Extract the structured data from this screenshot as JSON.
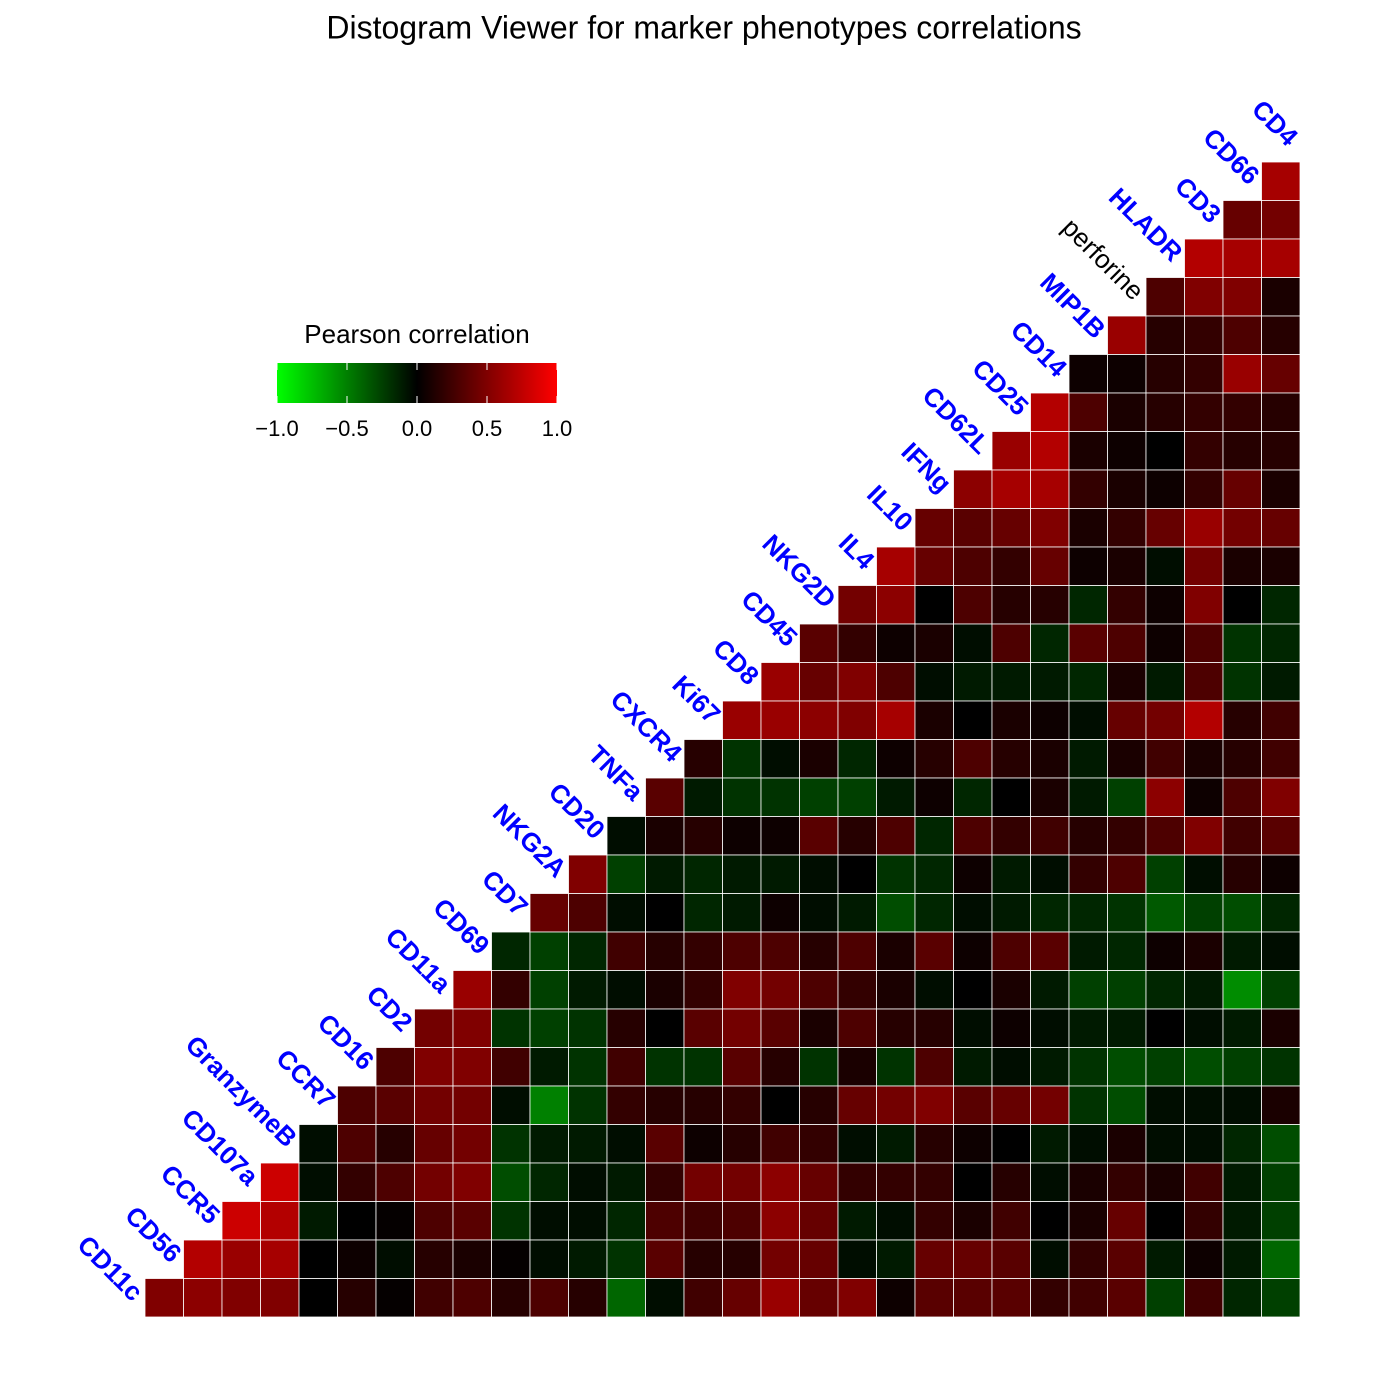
{
  "chart_data": {
    "type": "triangular-heatmap",
    "title": "Distogram Viewer for marker phenotypes correlations",
    "legend": {
      "title": "Pearson correlation",
      "corner": "top-left",
      "colors": [
        "#00ff00",
        "#000000",
        "#ff0000"
      ],
      "lim": [
        -1,
        1
      ],
      "ticks": [
        {
          "value": -1,
          "label": "−1.0"
        },
        {
          "value": -0.5,
          "label": "−0.5"
        },
        {
          "value": 0,
          "label": "0.0"
        },
        0.5,
        {
          "value": 1,
          "label": "1.0"
        }
      ]
    },
    "markers": [
      {
        "name": "CD11c",
        "color": "#0000ff"
      },
      {
        "name": "CD56",
        "color": "#0000ff"
      },
      {
        "name": "CCR5",
        "color": "#0000ff"
      },
      {
        "name": "CD107a",
        "color": "#0000ff"
      },
      {
        "name": "GranzymeB",
        "color": "#0000ff"
      },
      {
        "name": "CCR7",
        "color": "#0000ff"
      },
      {
        "name": "CD16",
        "color": "#0000ff"
      },
      {
        "name": "CD2",
        "color": "#0000ff"
      },
      {
        "name": "CD11a",
        "color": "#0000ff"
      },
      {
        "name": "CD69",
        "color": "#0000ff"
      },
      {
        "name": "CD7",
        "color": "#0000ff"
      },
      {
        "name": "NKG2A",
        "color": "#0000ff"
      },
      {
        "name": "CD20",
        "color": "#0000ff"
      },
      {
        "name": "TNFa",
        "color": "#0000ff"
      },
      {
        "name": "CXCR4",
        "color": "#0000ff"
      },
      {
        "name": "Ki67",
        "color": "#0000ff"
      },
      {
        "name": "CD8",
        "color": "#0000ff"
      },
      {
        "name": "CD45",
        "color": "#0000ff"
      },
      {
        "name": "NKG2D",
        "color": "#0000ff"
      },
      {
        "name": "IL4",
        "color": "#0000ff"
      },
      {
        "name": "IL10",
        "color": "#0000ff"
      },
      {
        "name": "IFNg",
        "color": "#0000ff"
      },
      {
        "name": "CD62L",
        "color": "#0000ff"
      },
      {
        "name": "CD25",
        "color": "#0000ff"
      },
      {
        "name": "CD14",
        "color": "#0000ff"
      },
      {
        "name": "MIP1B",
        "color": "#0000ff"
      },
      {
        "name": "perforine",
        "color": "#000000"
      },
      {
        "name": "HLADR",
        "color": "#0000ff"
      },
      {
        "name": "CD3",
        "color": "#0000ff"
      },
      {
        "name": "CD66",
        "color": "#0000ff"
      },
      {
        "name": "CD4",
        "color": "#0000ff"
      }
    ],
    "rows": [
      [
        0.65
      ],
      [
        0.4,
        0.45
      ],
      [
        0.7,
        0.65,
        0.65
      ],
      [
        0.3,
        0.5,
        0.5,
        0.1
      ],
      [
        0.6,
        0.15,
        0.2,
        0.3,
        0.15
      ],
      [
        0.05,
        0.05,
        0.15,
        0.2,
        0.6,
        0.4
      ],
      [
        0.7,
        0.3,
        0.1,
        0.15,
        0.2,
        0.2,
        0.15
      ],
      [
        0.6,
        0.7,
        0.1,
        0.05,
        0,
        0.2,
        0.15,
        0.15
      ],
      [
        0.55,
        0.65,
        0.65,
        0.2,
        0.1,
        0.05,
        0.2,
        0.4,
        0.1
      ],
      [
        0.4,
        0.35,
        0.4,
        0.5,
        0.1,
        0.2,
        0.4,
        0.6,
        0.45,
        0.4
      ],
      [
        0.65,
        0.4,
        0.3,
        0.2,
        0.4,
        0.05,
        0.1,
        -0.05,
        0.45,
        0.1,
        0.1
      ],
      [
        0.45,
        0.55,
        0,
        0.3,
        0.15,
        0.15,
        -0.15,
        0.2,
        0.05,
        0.5,
        0,
        -0.15
      ],
      [
        0.35,
        0.2,
        0.05,
        0.1,
        -0.05,
        0.3,
        -0.15,
        0.35,
        0.3,
        0.05,
        0.3,
        -0.2,
        -0.15
      ],
      [
        0.6,
        0.4,
        0.5,
        0.3,
        -0.05,
        -0.1,
        -0.1,
        -0.1,
        -0.15,
        0.1,
        -0.1,
        0.3,
        -0.2,
        -0.1
      ],
      [
        0.6,
        0.6,
        0.55,
        0.5,
        0.65,
        0.1,
        0,
        0.1,
        0.05,
        -0.05,
        0.4,
        0.45,
        0.7,
        0.15,
        0.25
      ],
      [
        0.15,
        -0.2,
        -0.05,
        0.1,
        -0.15,
        0.05,
        0.15,
        0.3,
        0.15,
        0.1,
        -0.1,
        0.1,
        0.25,
        0.1,
        0.15,
        0.25
      ],
      [
        0.35,
        -0.1,
        -0.2,
        -0.2,
        -0.25,
        -0.25,
        -0.1,
        0.05,
        -0.15,
        0,
        0.1,
        -0.1,
        -0.25,
        0.55,
        0.05,
        0.3,
        0.5
      ],
      [
        -0.05,
        0.1,
        0.15,
        0.05,
        0.05,
        0.35,
        0.15,
        0.3,
        -0.15,
        0.3,
        0.2,
        0.25,
        0.15,
        0.2,
        0.3,
        0.5,
        0.25,
        0.35
      ],
      [
        0.5,
        -0.25,
        -0.1,
        -0.15,
        -0.1,
        -0.1,
        -0.05,
        0,
        -0.2,
        -0.15,
        0.05,
        -0.1,
        -0.05,
        0.2,
        0.3,
        -0.25,
        -0.05,
        0.15,
        0.05
      ],
      [
        0.4,
        0.3,
        -0.05,
        0,
        -0.15,
        -0.1,
        0.05,
        -0.05,
        -0.1,
        -0.3,
        -0.15,
        -0.05,
        -0.1,
        -0.15,
        -0.15,
        -0.2,
        -0.35,
        -0.25,
        -0.3,
        -0.15
      ],
      [
        -0.15,
        -0.25,
        -0.15,
        0.25,
        0.15,
        0.2,
        0.3,
        0.3,
        0.15,
        0.3,
        0.1,
        0.35,
        0.05,
        0.3,
        0.35,
        -0.1,
        -0.15,
        0.05,
        0.1,
        -0.1,
        -0.05
      ],
      [
        0.6,
        0.2,
        -0.25,
        -0.1,
        -0.05,
        0.1,
        0.2,
        0.5,
        0.45,
        0.3,
        0.2,
        0.1,
        -0.05,
        0,
        0.1,
        -0.1,
        -0.25,
        -0.25,
        -0.15,
        -0.1,
        -0.55,
        -0.25
      ],
      [
        0.45,
        0.5,
        -0.2,
        -0.25,
        -0.2,
        0.15,
        0,
        0.35,
        0.45,
        0.35,
        0.1,
        0.3,
        0.15,
        0.15,
        -0.05,
        0.05,
        -0.05,
        -0.1,
        -0.1,
        0,
        -0.05,
        -0.1,
        0.1
      ],
      [
        0.3,
        0.5,
        0.5,
        0.25,
        -0.1,
        -0.2,
        0.25,
        -0.2,
        -0.2,
        0.35,
        0.15,
        -0.2,
        0.1,
        -0.2,
        0.3,
        -0.1,
        -0.05,
        -0.1,
        -0.2,
        -0.3,
        -0.25,
        -0.3,
        -0.25,
        -0.2
      ],
      [
        0.3,
        0.35,
        0.45,
        0.45,
        -0.05,
        -0.5,
        -0.2,
        0.2,
        0.15,
        0.15,
        0.2,
        0,
        0.15,
        0.4,
        0.45,
        0.5,
        0.35,
        0.4,
        0.45,
        -0.2,
        -0.3,
        -0.05,
        -0.05,
        -0.05,
        0.1
      ],
      [
        -0.05,
        0.3,
        0.15,
        0.4,
        0.45,
        -0.2,
        -0.1,
        -0.1,
        -0.05,
        0.35,
        0.05,
        0.15,
        0.25,
        0.2,
        -0.05,
        -0.1,
        0.15,
        0.05,
        0,
        -0.1,
        -0.05,
        0.1,
        -0.05,
        -0.05,
        -0.15,
        -0.3
      ],
      [
        0.8,
        -0.05,
        0.2,
        0.3,
        0.45,
        0.5,
        -0.3,
        -0.15,
        -0.05,
        -0.1,
        0.2,
        0.45,
        0.45,
        0.55,
        0.4,
        0.2,
        0.2,
        0.2,
        0,
        0.15,
        -0.05,
        0.1,
        0.2,
        0.1,
        0.25,
        -0.1,
        -0.25
      ],
      [
        0.8,
        0.7,
        -0.1,
        0,
        0.02,
        0.3,
        0.35,
        -0.2,
        -0.05,
        -0.05,
        -0.15,
        0.3,
        0.25,
        0.3,
        0.55,
        0.4,
        -0.1,
        -0.05,
        0.2,
        0.1,
        0.25,
        0,
        0.1,
        0.4,
        0,
        0.2,
        -0.1,
        -0.25
      ],
      [
        0.7,
        0.6,
        0.65,
        0,
        0.05,
        -0.05,
        0.15,
        0.1,
        0.02,
        -0.05,
        -0.1,
        -0.2,
        0.35,
        0.15,
        0.15,
        0.45,
        0.4,
        -0.05,
        -0.1,
        0.4,
        0.4,
        0.35,
        -0.05,
        0.2,
        0.35,
        -0.1,
        0.05,
        -0.1,
        -0.4
      ],
      [
        0.5,
        0.55,
        0.5,
        0.5,
        0,
        0.15,
        0.02,
        0.25,
        0.3,
        0.15,
        0.3,
        0.15,
        -0.4,
        -0.05,
        0.25,
        0.4,
        0.6,
        0.4,
        0.5,
        0.05,
        0.35,
        0.35,
        0.35,
        0.2,
        0.25,
        0.35,
        -0.25,
        0.25,
        -0.15,
        -0.25
      ]
    ]
  }
}
